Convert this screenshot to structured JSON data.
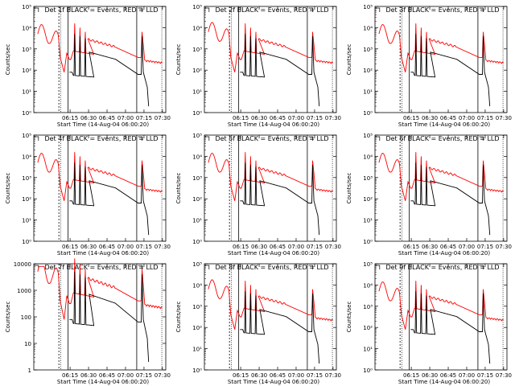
{
  "chart_data": [
    {
      "type": "line",
      "panel": 1,
      "title": "Det 1f BLACK = Events, RED = LLD",
      "xlabel": "Start Time (14-Aug-04 06:00:20)",
      "ylabel": "Counts/sec",
      "y_scale": "log",
      "ylim": [
        1,
        100000
      ],
      "x_ticks": [
        "06:15",
        "06:30",
        "06:45",
        "07:00",
        "07:15",
        "07:30"
      ],
      "y_ticks": [
        "10⁰",
        "10¹",
        "10²",
        "10³",
        "10⁴",
        "10⁵"
      ],
      "series": [
        {
          "color": "#000000"
        },
        {
          "color": "#ff0000"
        }
      ]
    },
    {
      "type": "line",
      "panel": 2,
      "title": "Det 2f BLACK = Events, RED = LLD",
      "xlabel": "Start Time (14-Aug-04 06:00:20)",
      "ylabel": "Counts/sec",
      "y_scale": "log",
      "ylim": [
        1,
        100000
      ],
      "x_ticks": [
        "06:15",
        "06:30",
        "06:45",
        "07:00",
        "07:15",
        "07:30"
      ],
      "y_ticks": [
        "10⁰",
        "10¹",
        "10²",
        "10³",
        "10⁴",
        "10⁵"
      ],
      "series": [
        {
          "color": "#000000"
        },
        {
          "color": "#ff0000"
        }
      ]
    },
    {
      "type": "line",
      "panel": 3,
      "title": "Det 3f BLACK = Events, RED = LLD",
      "xlabel": "Start Time (14-Aug-04 06:00:20)",
      "ylabel": "Counts/sec",
      "y_scale": "log",
      "ylim": [
        1,
        100000
      ],
      "x_ticks": [
        "06:15",
        "06:30",
        "06:45",
        "07:00",
        "07:15",
        "07:30"
      ],
      "y_ticks": [
        "10⁰",
        "10¹",
        "10²",
        "10³",
        "10⁴",
        "10⁵"
      ],
      "series": [
        {
          "color": "#000000"
        },
        {
          "color": "#ff0000"
        }
      ]
    },
    {
      "type": "line",
      "panel": 4,
      "title": "Det 4f BLACK = Events, RED = LLD",
      "xlabel": "Start Time (14-Aug-04 06:00:20)",
      "ylabel": "Counts/sec",
      "y_scale": "log",
      "ylim": [
        1,
        100000
      ],
      "x_ticks": [
        "06:15",
        "06:30",
        "06:45",
        "07:00",
        "07:15",
        "07:30"
      ],
      "y_ticks": [
        "10⁰",
        "10¹",
        "10²",
        "10³",
        "10⁴",
        "10⁵"
      ],
      "series": [
        {
          "color": "#000000"
        },
        {
          "color": "#ff0000"
        }
      ]
    },
    {
      "type": "line",
      "panel": 5,
      "title": "Det 5f BLACK = Events, RED = LLD",
      "xlabel": "Start Time (14-Aug-04 06:00:20)",
      "ylabel": "Counts/sec",
      "y_scale": "log",
      "ylim": [
        1,
        100000
      ],
      "x_ticks": [
        "06:15",
        "06:30",
        "06:45",
        "07:00",
        "07:15",
        "07:30"
      ],
      "y_ticks": [
        "10⁰",
        "10¹",
        "10²",
        "10³",
        "10⁴",
        "10⁵"
      ],
      "series": [
        {
          "color": "#000000"
        },
        {
          "color": "#ff0000"
        }
      ]
    },
    {
      "type": "line",
      "panel": 6,
      "title": "Det 6f BLACK = Events, RED = LLD",
      "xlabel": "Start Time (14-Aug-04 06:00:20)",
      "ylabel": "Counts/sec",
      "y_scale": "log",
      "ylim": [
        1,
        100000
      ],
      "x_ticks": [
        "06:15",
        "06:30",
        "06:45",
        "07:00",
        "07:15",
        "07:30"
      ],
      "y_ticks": [
        "10⁰",
        "10¹",
        "10²",
        "10³",
        "10⁴",
        "10⁵"
      ],
      "series": [
        {
          "color": "#000000"
        },
        {
          "color": "#ff0000"
        }
      ]
    },
    {
      "type": "line",
      "panel": 7,
      "title": "Det 7f BLACK = Events, RED = LLD",
      "xlabel": "Start Time (14-Aug-04 06:00:20)",
      "ylabel": "Counts/sec",
      "y_scale": "log",
      "ylim": [
        1,
        10000
      ],
      "x_ticks": [
        "06:15",
        "06:30",
        "06:45",
        "07:00",
        "07:15",
        "07:30"
      ],
      "y_ticks": [
        "1",
        "10",
        "100",
        "1000",
        "10000"
      ],
      "series": [
        {
          "color": "#000000"
        },
        {
          "color": "#ff0000"
        }
      ]
    },
    {
      "type": "line",
      "panel": 8,
      "title": "Det 8f BLACK = Events, RED = LLD",
      "xlabel": "Start Time (14-Aug-04 06:00:20)",
      "ylabel": "Counts/sec",
      "y_scale": "log",
      "ylim": [
        1,
        100000
      ],
      "x_ticks": [
        "06:15",
        "06:30",
        "06:45",
        "07:00",
        "07:15",
        "07:30"
      ],
      "y_ticks": [
        "10⁰",
        "10¹",
        "10²",
        "10³",
        "10⁴",
        "10⁵"
      ],
      "series": [
        {
          "color": "#000000"
        },
        {
          "color": "#ff0000"
        }
      ]
    },
    {
      "type": "line",
      "panel": 9,
      "title": "Det 9f BLACK = Events, RED = LLD",
      "xlabel": "Start Time (14-Aug-04 06:00:20)",
      "ylabel": "Counts/sec",
      "y_scale": "log",
      "ylim": [
        1,
        100000
      ],
      "x_ticks": [
        "06:15",
        "06:30",
        "06:45",
        "07:00",
        "07:15",
        "07:30"
      ],
      "y_ticks": [
        "10⁰",
        "10¹",
        "10²",
        "10³",
        "10⁴",
        "10⁵"
      ],
      "series": [
        {
          "color": "#000000"
        },
        {
          "color": "#ff0000"
        }
      ]
    }
  ]
}
